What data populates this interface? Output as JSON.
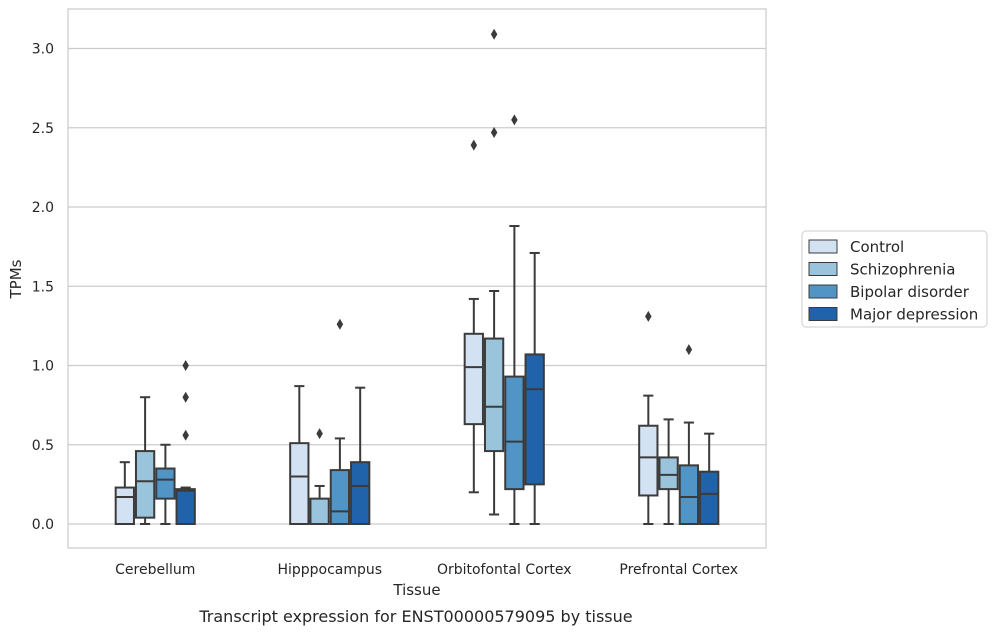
{
  "chart_data": {
    "type": "box",
    "xlabel": "Tissue",
    "ylabel": "TPMs",
    "caption": "Transcript expression for ENST00000579095 by tissue",
    "ylim": [
      -0.15,
      3.25
    ],
    "yticks": [
      "0.0",
      "0.5",
      "1.0",
      "1.5",
      "2.0",
      "2.5",
      "3.0"
    ],
    "grid": "horizontal",
    "legend_position": "right",
    "categories": [
      "Cerebellum",
      "Hipppocampus",
      "Orbitofontal Cortex",
      "Prefrontal Cortex"
    ],
    "series": [
      {
        "name": "Control",
        "color": "#d3e2f2",
        "boxes": [
          {
            "whislo": 0.0,
            "q1": 0.0,
            "med": 0.17,
            "q3": 0.23,
            "whishi": 0.39,
            "fliers": []
          },
          {
            "whislo": 0.0,
            "q1": 0.0,
            "med": 0.3,
            "q3": 0.51,
            "whishi": 0.87,
            "fliers": []
          },
          {
            "whislo": 0.2,
            "q1": 0.63,
            "med": 0.99,
            "q3": 1.2,
            "whishi": 1.42,
            "fliers": [
              2.39
            ]
          },
          {
            "whislo": 0.0,
            "q1": 0.18,
            "med": 0.42,
            "q3": 0.62,
            "whishi": 0.81,
            "fliers": [
              1.31
            ]
          }
        ]
      },
      {
        "name": "Schizophrenia",
        "color": "#9ac3dc",
        "boxes": [
          {
            "whislo": 0.0,
            "q1": 0.04,
            "med": 0.27,
            "q3": 0.46,
            "whishi": 0.8,
            "fliers": []
          },
          {
            "whislo": 0.0,
            "q1": 0.0,
            "med": 0.0,
            "q3": 0.16,
            "whishi": 0.24,
            "fliers": [
              0.57
            ]
          },
          {
            "whislo": 0.06,
            "q1": 0.46,
            "med": 0.74,
            "q3": 1.17,
            "whishi": 1.47,
            "fliers": [
              2.47,
              3.09
            ]
          },
          {
            "whislo": 0.0,
            "q1": 0.22,
            "med": 0.31,
            "q3": 0.42,
            "whishi": 0.66,
            "fliers": []
          }
        ]
      },
      {
        "name": "Bipolar disorder",
        "color": "#5195c7",
        "boxes": [
          {
            "whislo": 0.0,
            "q1": 0.16,
            "med": 0.28,
            "q3": 0.35,
            "whishi": 0.5,
            "fliers": []
          },
          {
            "whislo": 0.0,
            "q1": 0.0,
            "med": 0.08,
            "q3": 0.34,
            "whishi": 0.54,
            "fliers": [
              1.26
            ]
          },
          {
            "whislo": 0.0,
            "q1": 0.22,
            "med": 0.52,
            "q3": 0.93,
            "whishi": 1.88,
            "fliers": [
              2.55
            ]
          },
          {
            "whislo": 0.0,
            "q1": 0.0,
            "med": 0.17,
            "q3": 0.37,
            "whishi": 0.64,
            "fliers": [
              1.1
            ]
          }
        ]
      },
      {
        "name": "Major depression",
        "color": "#2163aa",
        "boxes": [
          {
            "whislo": 0.0,
            "q1": 0.0,
            "med": 0.21,
            "q3": 0.22,
            "whishi": 0.23,
            "fliers": [
              0.56,
              0.8,
              1.0
            ]
          },
          {
            "whislo": 0.0,
            "q1": 0.0,
            "med": 0.24,
            "q3": 0.39,
            "whishi": 0.86,
            "fliers": []
          },
          {
            "whislo": 0.0,
            "q1": 0.25,
            "med": 0.85,
            "q3": 1.07,
            "whishi": 1.71,
            "fliers": []
          },
          {
            "whislo": 0.0,
            "q1": 0.0,
            "med": 0.19,
            "q3": 0.33,
            "whishi": 0.57,
            "fliers": []
          }
        ]
      }
    ]
  }
}
